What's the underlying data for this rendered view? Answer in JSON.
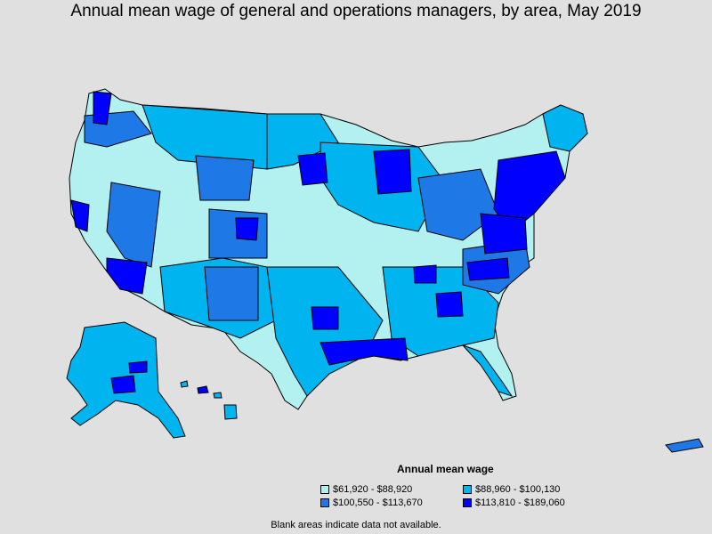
{
  "title": "Annual mean wage of general and operations managers, by area, May 2019",
  "colors": {
    "background": "#e0e0e0",
    "tier1": "#b3f0f0",
    "tier2": "#00b4f0",
    "tier3": "#1e78e6",
    "tier4": "#0000ff",
    "border": "#000000"
  },
  "legend": {
    "title": "Annual mean wage",
    "items": [
      {
        "label": "$61,920 - $88,920",
        "color": "#b3f0f0"
      },
      {
        "label": "$88,960 - $100,130",
        "color": "#00b4f0"
      },
      {
        "label": "$100,550 - $113,670",
        "color": "#1e78e6"
      },
      {
        "label": "$113,810 - $189,060",
        "color": "#0000ff"
      }
    ]
  },
  "footnote": "Blank areas indicate data not available."
}
